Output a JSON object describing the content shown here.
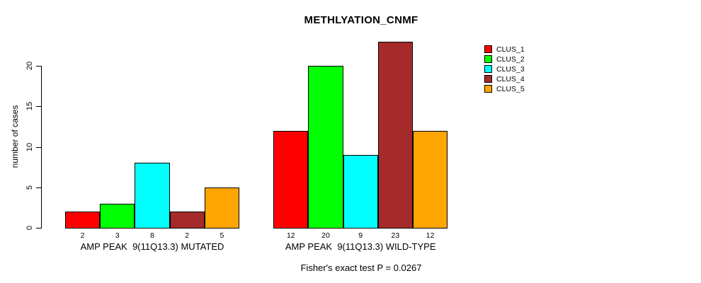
{
  "chart_data": {
    "type": "bar",
    "title": "METHLYATION_CNMF",
    "ylabel": "number of cases",
    "xlabel": "",
    "yticks": [
      0,
      5,
      10,
      15,
      20
    ],
    "ylim": [
      0,
      23
    ],
    "grid": false,
    "legend_position": "top-right",
    "categories": [
      "AMP PEAK  9(11Q13.3) MUTATED",
      "AMP PEAK  9(11Q13.3) WILD-TYPE"
    ],
    "series": [
      {
        "name": "CLUS_1",
        "color": "#FF0000",
        "values": [
          2,
          12
        ]
      },
      {
        "name": "CLUS_2",
        "color": "#00FF00",
        "values": [
          3,
          20
        ]
      },
      {
        "name": "CLUS_3",
        "color": "#00FFFF",
        "values": [
          8,
          9
        ]
      },
      {
        "name": "CLUS_4",
        "color": "#A52A2A",
        "values": [
          2,
          23
        ]
      },
      {
        "name": "CLUS_5",
        "color": "#FFA500",
        "values": [
          5,
          12
        ]
      }
    ],
    "bar_value_labels": [
      [
        2,
        3,
        8,
        2,
        5
      ],
      [
        12,
        20,
        9,
        23,
        12
      ]
    ],
    "footnote": "Fisher's exact test P = 0.0267"
  },
  "colors": {
    "background": "#FFFFFF",
    "text": "#000000",
    "bar_border": "#000000"
  }
}
